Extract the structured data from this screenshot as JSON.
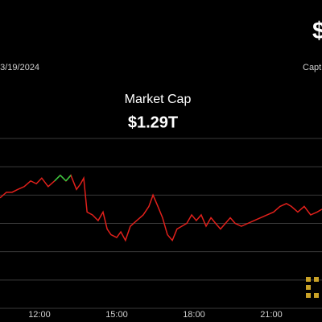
{
  "header": {
    "symbol": "$",
    "date": "03/19/2024",
    "caption": "Capt"
  },
  "chart_data": {
    "type": "line",
    "title": "Market Cap",
    "subtitle": "$1.29T",
    "x": [
      10.47,
      10.72,
      10.94,
      11.16,
      11.41,
      11.66,
      11.88,
      12.09,
      12.34,
      12.59,
      12.81,
      13.03,
      13.22,
      13.44,
      13.6,
      13.72,
      13.85,
      14.06,
      14.28,
      14.47,
      14.63,
      14.78,
      15,
      15.16,
      15.34,
      15.53,
      15.78,
      16.03,
      16.25,
      16.41,
      16.6,
      16.78,
      16.97,
      17.16,
      17.34,
      17.53,
      17.72,
      17.91,
      18.09,
      18.28,
      18.47,
      18.66,
      18.84,
      19.03,
      19.22,
      19.41,
      19.6,
      19.84,
      20.09,
      20.34,
      20.59,
      20.84,
      21.09,
      21.34,
      21.59,
      21.78,
      22.03,
      22.28,
      22.53,
      22.78,
      22.97
    ],
    "series": [
      {
        "name": "Market Cap",
        "color": "#e0201b",
        "highlight_color": "#2ecc40",
        "highlight_above": 1.305,
        "values": [
          1.299,
          1.301,
          1.301,
          1.302,
          1.303,
          1.305,
          1.304,
          1.306,
          1.303,
          1.305,
          1.307,
          1.305,
          1.307,
          1.302,
          1.304,
          1.306,
          1.294,
          1.293,
          1.291,
          1.294,
          1.288,
          1.286,
          1.285,
          1.287,
          1.284,
          1.289,
          1.291,
          1.293,
          1.296,
          1.3,
          1.296,
          1.292,
          1.286,
          1.284,
          1.288,
          1.289,
          1.29,
          1.293,
          1.291,
          1.293,
          1.289,
          1.292,
          1.29,
          1.288,
          1.29,
          1.292,
          1.29,
          1.289,
          1.29,
          1.291,
          1.292,
          1.293,
          1.294,
          1.296,
          1.297,
          1.296,
          1.294,
          1.296,
          1.293,
          1.294,
          1.295
        ]
      }
    ],
    "xlim": [
      10.47,
      22.97
    ],
    "xticks": [
      {
        "value": 12,
        "label": "12:00"
      },
      {
        "value": 15,
        "label": "15:00"
      },
      {
        "value": 18,
        "label": "18:00"
      },
      {
        "value": 21,
        "label": "21:00"
      }
    ],
    "ylim": [
      1.26,
      1.32
    ],
    "yticks": [
      1.26,
      1.27,
      1.28,
      1.29,
      1.3,
      1.31,
      1.32
    ],
    "grid": true
  }
}
